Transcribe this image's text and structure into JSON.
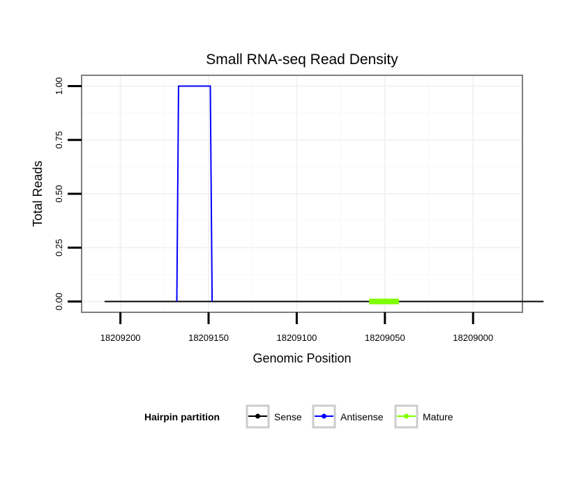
{
  "chart_data": {
    "type": "line",
    "title": "Small RNA-seq Read Density",
    "xlabel": "Genomic Position",
    "ylabel": "Total Reads",
    "x_reversed": true,
    "xlim": [
      18209222,
      18208972
    ],
    "ylim": [
      -0.05,
      1.05
    ],
    "x_ticks": [
      18209200,
      18209150,
      18209100,
      18209050,
      18209000
    ],
    "x_tick_labels": [
      "18209200",
      "18209150",
      "18209100",
      "18209050",
      "18209000"
    ],
    "y_ticks": [
      0,
      0.25,
      0.5,
      0.75,
      1
    ],
    "y_tick_labels": [
      "0.00",
      "0.25",
      "0.50",
      "0.75",
      "1.00"
    ],
    "grid": true,
    "legend": {
      "title": "Hairpin partition",
      "placement": "bottom",
      "entries": [
        "Sense",
        "Antisense",
        "Mature"
      ]
    },
    "series": [
      {
        "name": "Sense",
        "color": "#000000",
        "x": [
          18209209,
          18208960
        ],
        "values": [
          0,
          0
        ]
      },
      {
        "name": "Antisense",
        "color": "#0000ff",
        "x": [
          18209168,
          18209167,
          18209149,
          18209148
        ],
        "values": [
          0,
          1,
          1,
          0
        ]
      },
      {
        "name": "Mature",
        "color": "#7fff00",
        "x": [
          18209059,
          18209042
        ],
        "values": [
          0,
          0
        ]
      }
    ]
  }
}
